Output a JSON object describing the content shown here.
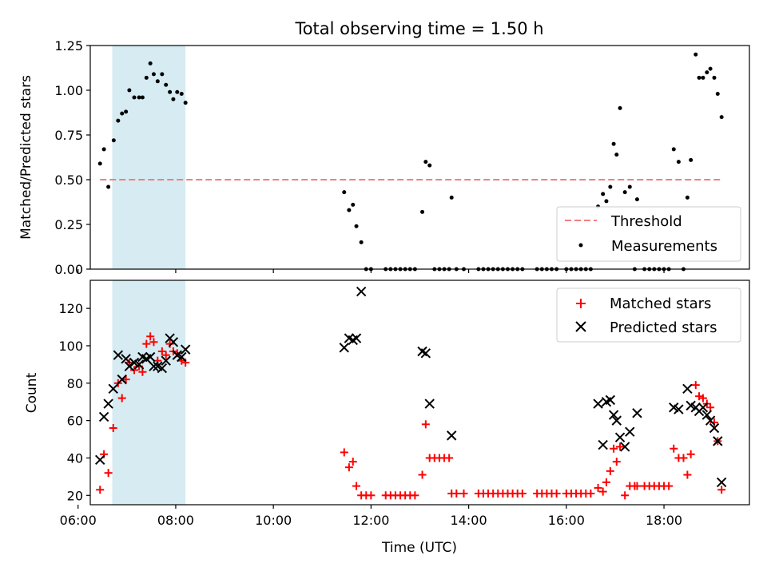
{
  "chart_data": [
    {
      "type": "scatter",
      "title": "Total observing time = 1.50 h",
      "xlabel": "",
      "ylabel": "Matched/Predicted stars",
      "xlim": [
        6.25,
        19.75
      ],
      "ylim": [
        0,
        1.25
      ],
      "x_ticks": [
        "06:00",
        "08:00",
        "10:00",
        "12:00",
        "14:00",
        "16:00",
        "18:00"
      ],
      "y_ticks": [
        "0.00",
        "0.25",
        "0.50",
        "0.75",
        "1.00",
        "1.25"
      ],
      "shaded_span": {
        "x_start": 6.7,
        "x_end": 8.2,
        "color": "#add8e6"
      },
      "legend_position": "lower-right",
      "threshold": {
        "name": "Threshold",
        "y": 0.5,
        "x_start": 6.45,
        "x_end": 19.2,
        "color": "#f08080"
      },
      "series": [
        {
          "name": "Measurements",
          "color": "#000000",
          "points": [
            [
              6.45,
              0.59
            ],
            [
              6.53,
              0.67
            ],
            [
              6.62,
              0.46
            ],
            [
              6.73,
              0.72
            ],
            [
              6.82,
              0.83
            ],
            [
              6.9,
              0.87
            ],
            [
              6.98,
              0.88
            ],
            [
              7.05,
              1.0
            ],
            [
              7.15,
              0.96
            ],
            [
              7.25,
              0.96
            ],
            [
              7.32,
              0.96
            ],
            [
              7.4,
              1.07
            ],
            [
              7.48,
              1.15
            ],
            [
              7.55,
              1.09
            ],
            [
              7.63,
              1.05
            ],
            [
              7.72,
              1.09
            ],
            [
              7.8,
              1.03
            ],
            [
              7.88,
              0.99
            ],
            [
              7.95,
              0.95
            ],
            [
              8.03,
              0.99
            ],
            [
              8.12,
              0.98
            ],
            [
              8.2,
              0.93
            ],
            [
              11.45,
              0.43
            ],
            [
              11.55,
              0.33
            ],
            [
              11.63,
              0.36
            ],
            [
              11.7,
              0.24
            ],
            [
              11.8,
              0.15
            ],
            [
              11.9,
              0.0
            ],
            [
              12.0,
              0.0
            ],
            [
              12.3,
              0.0
            ],
            [
              12.4,
              0.0
            ],
            [
              12.5,
              0.0
            ],
            [
              12.6,
              0.0
            ],
            [
              12.7,
              0.0
            ],
            [
              12.8,
              0.0
            ],
            [
              12.9,
              0.0
            ],
            [
              13.05,
              0.32
            ],
            [
              13.12,
              0.6
            ],
            [
              13.2,
              0.58
            ],
            [
              13.3,
              0.0
            ],
            [
              13.4,
              0.0
            ],
            [
              13.5,
              0.0
            ],
            [
              13.6,
              0.0
            ],
            [
              13.65,
              0.4
            ],
            [
              13.75,
              0.0
            ],
            [
              13.9,
              0.0
            ],
            [
              14.2,
              0.0
            ],
            [
              14.3,
              0.0
            ],
            [
              14.4,
              0.0
            ],
            [
              14.5,
              0.0
            ],
            [
              14.6,
              0.0
            ],
            [
              14.7,
              0.0
            ],
            [
              14.8,
              0.0
            ],
            [
              14.9,
              0.0
            ],
            [
              15.0,
              0.0
            ],
            [
              15.1,
              0.0
            ],
            [
              15.4,
              0.0
            ],
            [
              15.5,
              0.0
            ],
            [
              15.6,
              0.0
            ],
            [
              15.7,
              0.0
            ],
            [
              15.8,
              0.0
            ],
            [
              16.0,
              0.0
            ],
            [
              16.1,
              0.0
            ],
            [
              16.2,
              0.0
            ],
            [
              16.3,
              0.0
            ],
            [
              16.4,
              0.0
            ],
            [
              16.5,
              0.0
            ],
            [
              16.65,
              0.35
            ],
            [
              16.75,
              0.42
            ],
            [
              16.82,
              0.38
            ],
            [
              16.9,
              0.46
            ],
            [
              16.97,
              0.7
            ],
            [
              17.03,
              0.64
            ],
            [
              17.1,
              0.9
            ],
            [
              17.2,
              0.43
            ],
            [
              17.3,
              0.46
            ],
            [
              17.45,
              0.39
            ],
            [
              17.4,
              0.0
            ],
            [
              17.6,
              0.0
            ],
            [
              17.7,
              0.0
            ],
            [
              17.8,
              0.0
            ],
            [
              17.9,
              0.0
            ],
            [
              18.0,
              0.0
            ],
            [
              18.1,
              0.0
            ],
            [
              18.2,
              0.67
            ],
            [
              18.3,
              0.6
            ],
            [
              18.4,
              0.0
            ],
            [
              18.48,
              0.4
            ],
            [
              18.55,
              0.61
            ],
            [
              18.65,
              1.2
            ],
            [
              18.72,
              1.07
            ],
            [
              18.8,
              1.07
            ],
            [
              18.88,
              1.1
            ],
            [
              18.95,
              1.12
            ],
            [
              19.03,
              1.07
            ],
            [
              19.1,
              0.98
            ],
            [
              19.18,
              0.85
            ]
          ]
        }
      ]
    },
    {
      "type": "scatter",
      "title": "",
      "xlabel": "Time (UTC)",
      "ylabel": "Count",
      "xlim": [
        6.25,
        19.75
      ],
      "ylim": [
        15,
        135
      ],
      "x_ticks": [
        "06:00",
        "08:00",
        "10:00",
        "12:00",
        "14:00",
        "16:00",
        "18:00"
      ],
      "y_ticks": [
        "20",
        "40",
        "60",
        "80",
        "100",
        "120"
      ],
      "shaded_span": {
        "x_start": 6.7,
        "x_end": 8.2,
        "color": "#add8e6"
      },
      "legend_position": "top-right",
      "series": [
        {
          "name": "Matched stars",
          "marker": "plus",
          "color": "#ff0000",
          "points": [
            [
              6.45,
              23
            ],
            [
              6.53,
              42
            ],
            [
              6.62,
              32
            ],
            [
              6.72,
              56
            ],
            [
              6.82,
              80
            ],
            [
              6.9,
              72
            ],
            [
              6.98,
              82
            ],
            [
              7.05,
              91
            ],
            [
              7.15,
              87
            ],
            [
              7.25,
              89
            ],
            [
              7.32,
              86
            ],
            [
              7.4,
              101
            ],
            [
              7.48,
              105
            ],
            [
              7.55,
              102
            ],
            [
              7.63,
              92
            ],
            [
              7.72,
              97
            ],
            [
              7.8,
              95
            ],
            [
              7.88,
              101
            ],
            [
              7.95,
              97
            ],
            [
              8.03,
              96
            ],
            [
              8.12,
              92
            ],
            [
              8.2,
              91
            ],
            [
              11.45,
              43
            ],
            [
              11.55,
              35
            ],
            [
              11.63,
              38
            ],
            [
              11.7,
              25
            ],
            [
              11.8,
              20
            ],
            [
              11.9,
              20
            ],
            [
              12.0,
              20
            ],
            [
              12.3,
              20
            ],
            [
              12.4,
              20
            ],
            [
              12.5,
              20
            ],
            [
              12.6,
              20
            ],
            [
              12.7,
              20
            ],
            [
              12.8,
              20
            ],
            [
              12.9,
              20
            ],
            [
              13.05,
              31
            ],
            [
              13.12,
              58
            ],
            [
              13.2,
              40
            ],
            [
              13.3,
              40
            ],
            [
              13.4,
              40
            ],
            [
              13.5,
              40
            ],
            [
              13.6,
              40
            ],
            [
              13.65,
              21
            ],
            [
              13.75,
              21
            ],
            [
              13.9,
              21
            ],
            [
              14.2,
              21
            ],
            [
              14.3,
              21
            ],
            [
              14.4,
              21
            ],
            [
              14.5,
              21
            ],
            [
              14.6,
              21
            ],
            [
              14.7,
              21
            ],
            [
              14.8,
              21
            ],
            [
              14.9,
              21
            ],
            [
              15.0,
              21
            ],
            [
              15.1,
              21
            ],
            [
              15.4,
              21
            ],
            [
              15.5,
              21
            ],
            [
              15.6,
              21
            ],
            [
              15.7,
              21
            ],
            [
              15.8,
              21
            ],
            [
              16.0,
              21
            ],
            [
              16.1,
              21
            ],
            [
              16.2,
              21
            ],
            [
              16.3,
              21
            ],
            [
              16.4,
              21
            ],
            [
              16.5,
              21
            ],
            [
              16.65,
              24
            ],
            [
              16.75,
              22
            ],
            [
              16.82,
              27
            ],
            [
              16.9,
              33
            ],
            [
              16.97,
              45
            ],
            [
              17.03,
              38
            ],
            [
              17.1,
              46
            ],
            [
              17.2,
              20
            ],
            [
              17.3,
              25
            ],
            [
              17.45,
              25
            ],
            [
              17.4,
              25
            ],
            [
              17.6,
              25
            ],
            [
              17.7,
              25
            ],
            [
              17.8,
              25
            ],
            [
              17.9,
              25
            ],
            [
              18.0,
              25
            ],
            [
              18.1,
              25
            ],
            [
              18.2,
              45
            ],
            [
              18.3,
              40
            ],
            [
              18.4,
              40
            ],
            [
              18.48,
              31
            ],
            [
              18.55,
              42
            ],
            [
              18.65,
              79
            ],
            [
              18.72,
              73
            ],
            [
              18.8,
              72
            ],
            [
              18.88,
              69
            ],
            [
              18.95,
              67
            ],
            [
              19.03,
              59
            ],
            [
              19.1,
              49
            ],
            [
              19.18,
              23
            ]
          ]
        },
        {
          "name": "Predicted stars",
          "marker": "x",
          "color": "#000000",
          "points": [
            [
              6.45,
              39
            ],
            [
              6.53,
              62
            ],
            [
              6.62,
              69
            ],
            [
              6.72,
              77
            ],
            [
              6.82,
              95
            ],
            [
              6.9,
              82
            ],
            [
              6.98,
              93
            ],
            [
              7.05,
              89
            ],
            [
              7.15,
              91
            ],
            [
              7.25,
              90
            ],
            [
              7.32,
              94
            ],
            [
              7.4,
              93
            ],
            [
              7.48,
              94
            ],
            [
              7.55,
              89
            ],
            [
              7.63,
              89
            ],
            [
              7.72,
              88
            ],
            [
              7.8,
              92
            ],
            [
              7.88,
              104
            ],
            [
              7.95,
              102
            ],
            [
              8.03,
              95
            ],
            [
              8.12,
              94
            ],
            [
              8.2,
              98
            ],
            [
              11.45,
              99
            ],
            [
              11.55,
              104
            ],
            [
              11.63,
              103
            ],
            [
              11.7,
              104
            ],
            [
              11.8,
              129
            ],
            [
              13.05,
              97
            ],
            [
              13.12,
              96
            ],
            [
              13.2,
              69
            ],
            [
              13.65,
              52
            ],
            [
              16.65,
              69
            ],
            [
              16.75,
              47
            ],
            [
              16.82,
              70
            ],
            [
              16.9,
              71
            ],
            [
              16.97,
              63
            ],
            [
              17.03,
              60
            ],
            [
              17.1,
              51
            ],
            [
              17.2,
              46
            ],
            [
              17.3,
              54
            ],
            [
              17.45,
              64
            ],
            [
              18.2,
              67
            ],
            [
              18.3,
              66
            ],
            [
              18.48,
              77
            ],
            [
              18.55,
              68
            ],
            [
              18.65,
              67
            ],
            [
              18.72,
              65
            ],
            [
              18.8,
              67
            ],
            [
              18.88,
              63
            ],
            [
              18.95,
              60
            ],
            [
              19.03,
              56
            ],
            [
              19.1,
              49
            ],
            [
              19.18,
              27
            ]
          ]
        }
      ]
    }
  ]
}
